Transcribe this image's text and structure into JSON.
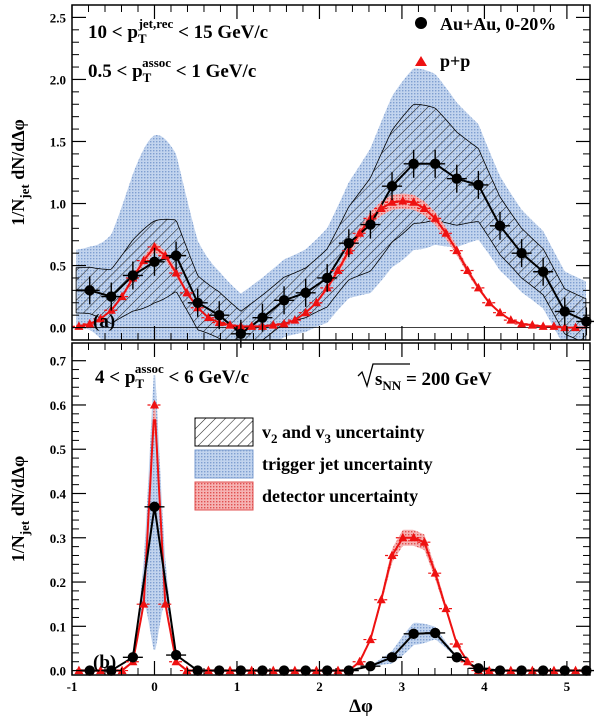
{
  "chart_data": [
    {
      "panel": "(a)",
      "type": "line",
      "xlim": [
        -1,
        5.28
      ],
      "ylim": [
        -0.1,
        2.6
      ],
      "yticks": [
        0.0,
        0.5,
        1.0,
        1.5,
        2.0,
        2.5
      ],
      "ytick_labels": [
        "0.0",
        "0.5",
        "1.0",
        "1.5",
        "2.0",
        "2.5"
      ],
      "ylabel": "1/N_jet dN/dΔφ",
      "annotations": {
        "line1_pre": "10 < p",
        "line1_sub": "T",
        "line1_sup": "jet,rec",
        "line1_post": " < 15 GeV/c",
        "line2_pre": "0.5 < p",
        "line2_sub": "T",
        "line2_sup": "assoc",
        "line2_post": " < 1 GeV/c"
      },
      "legend": [
        {
          "name": "Au+Au, 0-20%",
          "marker": "circle",
          "color": "#000000"
        },
        {
          "name": "p+p",
          "marker": "triangle",
          "color": "#ee1111"
        }
      ],
      "series": [
        {
          "name": "Au+Au, 0-20%",
          "x": [
            -0.785,
            -0.524,
            -0.262,
            0.0,
            0.262,
            0.524,
            0.785,
            1.047,
            1.309,
            1.571,
            1.833,
            2.094,
            2.356,
            2.618,
            2.88,
            3.142,
            3.403,
            3.665,
            3.927,
            4.189,
            4.451,
            4.712,
            4.974,
            5.236
          ],
          "y": [
            0.3,
            0.25,
            0.42,
            0.53,
            0.58,
            0.2,
            0.1,
            -0.05,
            0.08,
            0.22,
            0.28,
            0.4,
            0.68,
            0.83,
            1.14,
            1.32,
            1.32,
            1.2,
            1.15,
            0.82,
            0.6,
            0.45,
            0.13,
            0.05
          ]
        },
        {
          "name": "p+p",
          "x": [
            -0.916,
            -0.785,
            -0.654,
            -0.524,
            -0.393,
            -0.262,
            -0.131,
            0.0,
            0.131,
            0.262,
            0.393,
            0.524,
            0.654,
            0.785,
            0.916,
            1.047,
            1.178,
            1.309,
            1.44,
            1.571,
            1.702,
            1.833,
            1.963,
            2.094,
            2.225,
            2.356,
            2.487,
            2.618,
            2.749,
            2.88,
            3.011,
            3.142,
            3.272,
            3.403,
            3.534,
            3.665,
            3.796,
            3.927,
            4.058,
            4.189,
            4.32,
            4.451,
            4.581,
            4.712,
            4.843,
            4.974,
            5.105
          ],
          "y": [
            0.01,
            0.03,
            0.07,
            0.14,
            0.25,
            0.4,
            0.54,
            0.65,
            0.58,
            0.44,
            0.28,
            0.16,
            0.08,
            0.04,
            0.02,
            0.01,
            0.01,
            0.01,
            0.02,
            0.03,
            0.06,
            0.12,
            0.2,
            0.32,
            0.46,
            0.62,
            0.76,
            0.88,
            0.96,
            1.01,
            1.02,
            1.01,
            0.96,
            0.88,
            0.76,
            0.62,
            0.46,
            0.32,
            0.2,
            0.12,
            0.06,
            0.03,
            0.02,
            0.01,
            0.01,
            0.0,
            0.0
          ]
        }
      ]
    },
    {
      "panel": "(b)",
      "type": "line",
      "xlim": [
        -1,
        5.28
      ],
      "ylim": [
        -0.01,
        0.74
      ],
      "yticks": [
        0.0,
        0.1,
        0.2,
        0.3,
        0.4,
        0.5,
        0.6,
        0.7
      ],
      "ytick_labels": [
        "0.0",
        "0.1",
        "0.2",
        "0.3",
        "0.4",
        "0.5",
        "0.6",
        "0.7"
      ],
      "xticks": [
        -1,
        0,
        1,
        2,
        3,
        4,
        5
      ],
      "xtick_labels": [
        "-1",
        "0",
        "1",
        "2",
        "3",
        "4",
        "5"
      ],
      "xlabel": "Δφ",
      "ylabel": "1/N_jet dN/dΔφ",
      "annotations": {
        "line1_pre": "4 < p",
        "line1_sub": "T",
        "line1_sup": "assoc",
        "line1_post": " < 6 GeV/c",
        "energy_pre": "s",
        "energy_sub": "NN",
        "energy_post": " = 200 GeV"
      },
      "legend": [
        {
          "name_parts": [
            "v",
            "2",
            " and v",
            "3",
            " uncertainty"
          ],
          "fill": "hatch"
        },
        {
          "name": "trigger jet uncertainty",
          "fill": "#aec8e8"
        },
        {
          "name": "detector uncertainty",
          "fill": "#f4a0a0"
        }
      ],
      "series": [
        {
          "name": "Au+Au, 0-20%",
          "x": [
            -0.785,
            -0.524,
            -0.262,
            0.0,
            0.262,
            0.524,
            0.785,
            1.047,
            1.309,
            1.571,
            1.833,
            2.094,
            2.356,
            2.618,
            2.88,
            3.142,
            3.403,
            3.665,
            3.927,
            4.189,
            4.451,
            4.712,
            4.974,
            5.236
          ],
          "y": [
            0.0,
            0.0,
            0.03,
            0.37,
            0.035,
            0.0,
            0.0,
            0.0,
            0.0,
            0.0,
            0.0,
            0.0,
            0.0,
            0.01,
            0.03,
            0.083,
            0.085,
            0.03,
            0.005,
            0.0,
            0.0,
            0.0,
            0.0,
            0.0
          ]
        },
        {
          "name": "p+p",
          "x": [
            -0.916,
            -0.785,
            -0.654,
            -0.524,
            -0.393,
            -0.262,
            -0.131,
            0.0,
            0.131,
            0.262,
            0.393,
            0.524,
            0.654,
            0.785,
            0.916,
            1.047,
            1.178,
            1.309,
            1.44,
            1.571,
            1.702,
            1.833,
            1.963,
            2.094,
            2.225,
            2.356,
            2.487,
            2.618,
            2.749,
            2.88,
            3.011,
            3.142,
            3.272,
            3.403,
            3.534,
            3.665,
            3.796,
            3.927,
            4.058,
            4.189,
            4.32,
            4.451,
            4.581,
            4.712,
            4.843,
            4.974,
            5.105
          ],
          "y": [
            0.0,
            0.0,
            0.0,
            0.0,
            0.0,
            0.02,
            0.15,
            0.6,
            0.15,
            0.02,
            0.0,
            0.0,
            0.0,
            0.0,
            0.0,
            0.0,
            0.0,
            0.0,
            0.0,
            0.0,
            0.0,
            0.0,
            0.0,
            0.0,
            0.0,
            0.0,
            0.02,
            0.07,
            0.16,
            0.26,
            0.3,
            0.3,
            0.29,
            0.22,
            0.14,
            0.06,
            0.02,
            0.0,
            0.0,
            0.0,
            0.0,
            0.0,
            0.0,
            0.0,
            0.0,
            0.0,
            0.0
          ]
        }
      ]
    }
  ]
}
